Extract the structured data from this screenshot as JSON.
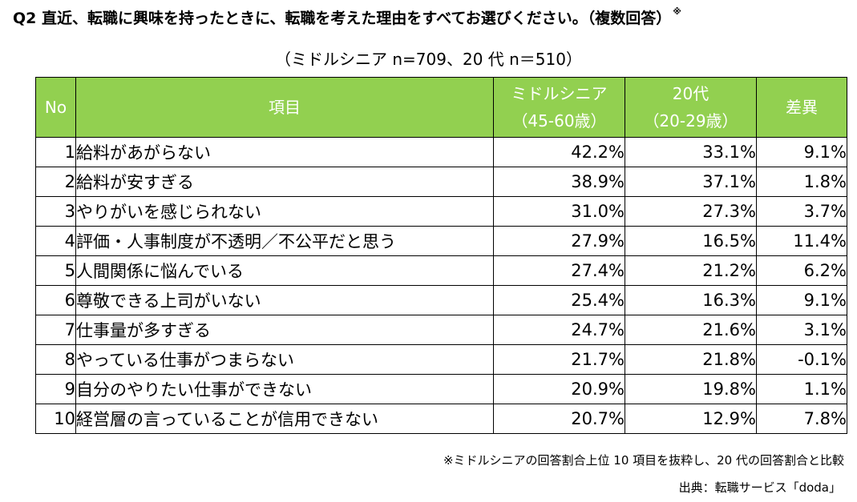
{
  "title": "Q2 直近、転職に興味を持ったときに、転職を考えた理由をすべてお選びください。（複数回答）",
  "title_mark": "※",
  "subtitle": "（ミドルシニア n=709、20 代 n＝510）",
  "header": {
    "no": "No",
    "item": "項目",
    "middle_line1": "ミドルシニア",
    "middle_line2": "（45-60歳）",
    "twenties_line1": "20代",
    "twenties_line2": "（20-29歳）",
    "diff": "差異"
  },
  "rows": [
    {
      "no": "1",
      "item": "給料があがらない",
      "middle": "42.2%",
      "twenties": "33.1%",
      "diff": "9.1%"
    },
    {
      "no": "2",
      "item": "給料が安すぎる",
      "middle": "38.9%",
      "twenties": "37.1%",
      "diff": "1.8%"
    },
    {
      "no": "3",
      "item": "やりがいを感じられない",
      "middle": "31.0%",
      "twenties": "27.3%",
      "diff": "3.7%"
    },
    {
      "no": "4",
      "item": "評価・人事制度が不透明／不公平だと思う",
      "middle": "27.9%",
      "twenties": "16.5%",
      "diff": "11.4%"
    },
    {
      "no": "5",
      "item": "人間関係に悩んでいる",
      "middle": "27.4%",
      "twenties": "21.2%",
      "diff": "6.2%"
    },
    {
      "no": "6",
      "item": "尊敬できる上司がいない",
      "middle": "25.4%",
      "twenties": "16.3%",
      "diff": "9.1%"
    },
    {
      "no": "7",
      "item": "仕事量が多すぎる",
      "middle": "24.7%",
      "twenties": "21.6%",
      "diff": "3.1%"
    },
    {
      "no": "8",
      "item": "やっている仕事がつまらない",
      "middle": "21.7%",
      "twenties": "21.8%",
      "diff": "-0.1%"
    },
    {
      "no": "9",
      "item": "自分のやりたい仕事ができない",
      "middle": "20.9%",
      "twenties": "19.8%",
      "diff": "1.1%"
    },
    {
      "no": "10",
      "item": "経営層の言っていることが信用できない",
      "middle": "20.7%",
      "twenties": "12.9%",
      "diff": "7.8%"
    }
  ],
  "footnote": "※ミドルシニアの回答割合上位 10 項目を抜粋し、20 代の回答割合と比較",
  "source": "出典：転職サービス「doda」",
  "colors": {
    "header_bg": "#92d050",
    "header_text": "#ffffff"
  }
}
